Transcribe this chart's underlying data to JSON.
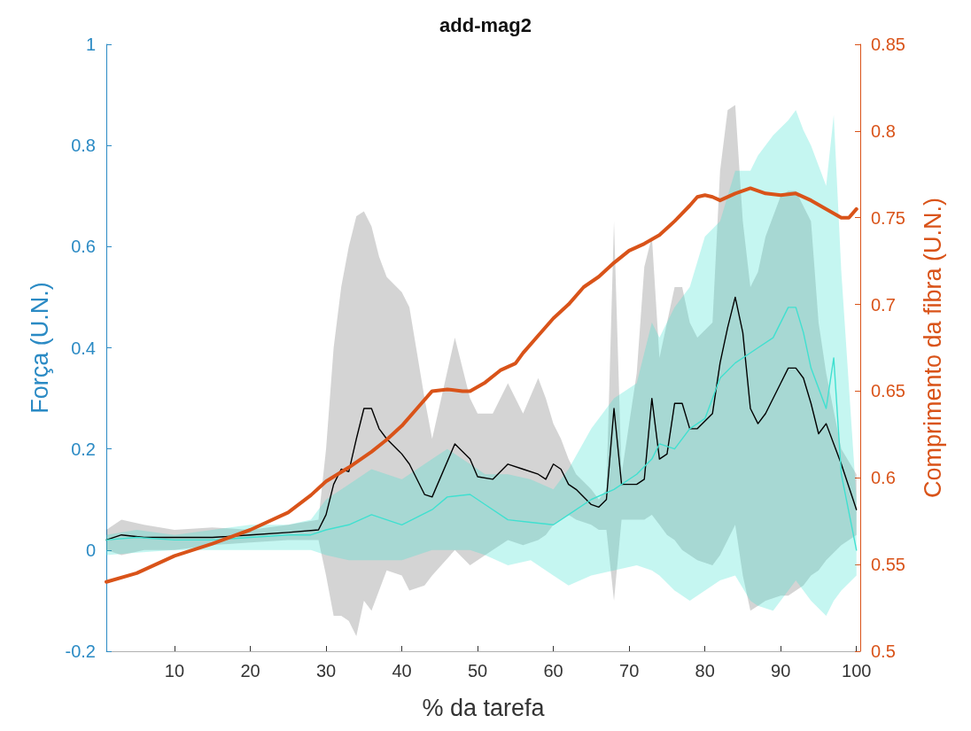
{
  "chart_data": {
    "type": "line",
    "title": "add-mag2",
    "xlabel": "% da tarefa",
    "ylabel": "Força (U.N.)",
    "y2label": "Comprimento da fibra (U.N.)",
    "xlim": [
      1,
      100.5
    ],
    "xticks": [
      10,
      20,
      30,
      40,
      50,
      60,
      70,
      80,
      90,
      100
    ],
    "ylim": [
      -0.2,
      1
    ],
    "yticks": [
      -0.2,
      0,
      0.2,
      0.4,
      0.6,
      0.8,
      1
    ],
    "y2lim": [
      0.5,
      0.85
    ],
    "y2ticks": [
      0.5,
      0.55,
      0.6,
      0.65,
      0.7,
      0.75,
      0.8,
      0.85
    ],
    "grid": false,
    "marker": "none",
    "line_style": "solid",
    "series": [
      {
        "color": "#000000",
        "x": [
          1,
          3,
          6,
          10,
          15,
          20,
          25,
          29,
          30,
          31,
          32,
          33,
          34,
          35,
          36,
          37,
          38,
          40,
          41,
          43,
          44,
          47,
          49,
          50,
          52,
          54,
          56,
          58,
          59,
          60,
          61,
          62,
          63,
          65,
          66,
          67,
          68,
          69,
          71,
          72,
          73,
          74,
          75,
          76,
          77,
          78,
          79,
          81,
          82,
          83,
          84,
          85,
          86,
          87,
          88,
          90,
          91,
          92,
          93,
          94,
          95,
          96,
          98,
          100
        ],
        "values": [
          0.02,
          0.03,
          0.025,
          0.025,
          0.025,
          0.03,
          0.035,
          0.04,
          0.07,
          0.13,
          0.16,
          0.155,
          0.22,
          0.28,
          0.28,
          0.24,
          0.22,
          0.19,
          0.17,
          0.11,
          0.105,
          0.21,
          0.18,
          0.145,
          0.14,
          0.17,
          0.16,
          0.15,
          0.14,
          0.17,
          0.16,
          0.13,
          0.12,
          0.09,
          0.085,
          0.1,
          0.28,
          0.13,
          0.13,
          0.14,
          0.3,
          0.18,
          0.19,
          0.29,
          0.29,
          0.24,
          0.24,
          0.27,
          0.37,
          0.44,
          0.5,
          0.43,
          0.28,
          0.25,
          0.27,
          0.33,
          0.36,
          0.36,
          0.34,
          0.29,
          0.23,
          0.25,
          0.17,
          0.08
        ],
        "lower": [
          0,
          -0.01,
          0,
          0,
          0.01,
          0.015,
          0.02,
          0.02,
          -0.05,
          -0.13,
          -0.13,
          -0.14,
          -0.17,
          -0.1,
          -0.12,
          -0.08,
          -0.04,
          -0.05,
          -0.08,
          -0.07,
          -0.05,
          0,
          -0.03,
          -0.02,
          0,
          0.02,
          0.01,
          0.02,
          0.03,
          0.05,
          0.06,
          0.07,
          0.06,
          0.05,
          0.04,
          0.04,
          -0.1,
          0.06,
          0.06,
          0.06,
          0.07,
          0.05,
          0.03,
          0.02,
          0,
          -0.01,
          -0.02,
          -0.03,
          -0.01,
          0.02,
          0.05,
          -0.05,
          -0.12,
          -0.11,
          -0.1,
          -0.09,
          -0.09,
          -0.08,
          -0.07,
          -0.05,
          -0.04,
          -0.02,
          0.01,
          0.03
        ],
        "upper": [
          0.04,
          0.06,
          0.05,
          0.04,
          0.045,
          0.04,
          0.05,
          0.06,
          0.2,
          0.4,
          0.52,
          0.6,
          0.66,
          0.67,
          0.64,
          0.58,
          0.54,
          0.51,
          0.48,
          0.3,
          0.22,
          0.42,
          0.3,
          0.27,
          0.27,
          0.33,
          0.27,
          0.34,
          0.3,
          0.25,
          0.22,
          0.18,
          0.15,
          0.12,
          0.1,
          0.12,
          0.65,
          0.15,
          0.35,
          0.56,
          0.62,
          0.38,
          0.45,
          0.52,
          0.52,
          0.45,
          0.42,
          0.45,
          0.75,
          0.87,
          0.88,
          0.65,
          0.52,
          0.55,
          0.62,
          0.7,
          0.71,
          0.71,
          0.68,
          0.65,
          0.45,
          0.35,
          0.2,
          0.15
        ]
      },
      {
        "color": "#40e0d0",
        "x": [
          1,
          5,
          10,
          15,
          20,
          25,
          28,
          30,
          33,
          36,
          40,
          44,
          46,
          49,
          51,
          54,
          57,
          60,
          62,
          65,
          68,
          71,
          73,
          74,
          76,
          78,
          80,
          82,
          84,
          86,
          87,
          89,
          91,
          92,
          93,
          94,
          96,
          97,
          98,
          100
        ],
        "values": [
          0.02,
          0.025,
          0.02,
          0.02,
          0.025,
          0.03,
          0.03,
          0.04,
          0.05,
          0.07,
          0.05,
          0.08,
          0.105,
          0.11,
          0.09,
          0.06,
          0.055,
          0.05,
          0.07,
          0.1,
          0.12,
          0.15,
          0.18,
          0.21,
          0.2,
          0.24,
          0.26,
          0.34,
          0.37,
          0.39,
          0.4,
          0.42,
          0.48,
          0.48,
          0.43,
          0.36,
          0.28,
          0.38,
          0.15,
          0.0
        ],
        "lower": [
          -0.01,
          -0.005,
          0,
          0,
          0,
          0,
          0,
          -0.01,
          -0.02,
          -0.02,
          -0.02,
          0,
          0,
          0,
          -0.01,
          -0.03,
          -0.02,
          -0.05,
          -0.07,
          -0.05,
          -0.04,
          -0.03,
          -0.04,
          -0.05,
          -0.08,
          -0.1,
          -0.08,
          -0.06,
          -0.05,
          -0.1,
          -0.11,
          -0.12,
          -0.08,
          -0.06,
          -0.08,
          -0.1,
          -0.13,
          -0.1,
          -0.08,
          -0.05
        ],
        "upper": [
          0.03,
          0.04,
          0.03,
          0.04,
          0.05,
          0.05,
          0.06,
          0.1,
          0.13,
          0.16,
          0.14,
          0.18,
          0.2,
          0.17,
          0.15,
          0.15,
          0.14,
          0.12,
          0.16,
          0.24,
          0.3,
          0.33,
          0.45,
          0.42,
          0.48,
          0.52,
          0.62,
          0.65,
          0.75,
          0.75,
          0.78,
          0.82,
          0.85,
          0.87,
          0.83,
          0.8,
          0.72,
          0.86,
          0.55,
          0.1
        ]
      },
      {
        "color": "#d95319",
        "axis": "y2",
        "x": [
          1,
          5,
          10,
          15,
          20,
          25,
          28,
          30,
          33,
          36,
          38,
          40,
          42,
          44,
          46,
          48,
          49,
          51,
          53,
          55,
          56,
          58,
          60,
          62,
          64,
          66,
          68,
          70,
          72,
          74,
          76,
          78,
          79,
          80,
          81,
          82,
          84,
          86,
          88,
          90,
          92,
          94,
          96,
          98,
          99,
          100
        ],
        "values": [
          0.54,
          0.545,
          0.555,
          0.562,
          0.57,
          0.58,
          0.59,
          0.598,
          0.606,
          0.615,
          0.622,
          0.63,
          0.64,
          0.65,
          0.651,
          0.65,
          0.65,
          0.655,
          0.662,
          0.666,
          0.672,
          0.682,
          0.692,
          0.7,
          0.71,
          0.716,
          0.724,
          0.731,
          0.735,
          0.74,
          0.748,
          0.757,
          0.762,
          0.763,
          0.762,
          0.76,
          0.764,
          0.767,
          0.764,
          0.763,
          0.764,
          0.76,
          0.755,
          0.75,
          0.75,
          0.755
        ]
      }
    ]
  }
}
